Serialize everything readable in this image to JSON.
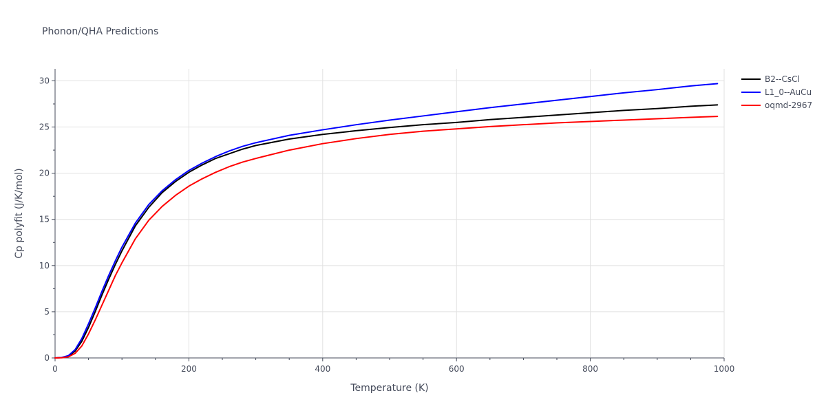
{
  "chart_data": {
    "type": "line",
    "title": "Phonon/QHA Predictions",
    "xlabel": "Temperature (K)",
    "ylabel": "Cp polyfit (J/K/mol)",
    "xlim": [
      0,
      1000
    ],
    "ylim": [
      0,
      31.3
    ],
    "x_ticks": [
      0,
      200,
      400,
      600,
      800,
      1000
    ],
    "y_ticks": [
      0,
      5,
      10,
      15,
      20,
      25,
      30
    ],
    "grid": true,
    "legend_position": "top-right",
    "x": [
      0,
      10,
      20,
      30,
      40,
      50,
      60,
      70,
      80,
      90,
      100,
      120,
      140,
      160,
      180,
      200,
      220,
      240,
      260,
      280,
      300,
      350,
      400,
      450,
      500,
      550,
      600,
      650,
      700,
      750,
      800,
      850,
      900,
      950,
      990
    ],
    "series": [
      {
        "name": "B2--CsCl",
        "color": "#000000",
        "values": [
          0,
          0.05,
          0.2,
          0.75,
          1.8,
          3.3,
          5.0,
          6.8,
          8.5,
          10.1,
          11.6,
          14.3,
          16.3,
          17.9,
          19.1,
          20.1,
          20.9,
          21.6,
          22.1,
          22.6,
          23.0,
          23.7,
          24.2,
          24.6,
          24.95,
          25.25,
          25.5,
          25.8,
          26.05,
          26.3,
          26.55,
          26.8,
          27.0,
          27.25,
          27.4
        ]
      },
      {
        "name": "L1_0--AuCu",
        "color": "#0000ff",
        "values": [
          0,
          0.05,
          0.25,
          0.9,
          2.1,
          3.7,
          5.4,
          7.2,
          8.9,
          10.5,
          12.0,
          14.6,
          16.6,
          18.1,
          19.3,
          20.3,
          21.1,
          21.8,
          22.4,
          22.9,
          23.3,
          24.1,
          24.7,
          25.25,
          25.75,
          26.2,
          26.65,
          27.1,
          27.5,
          27.9,
          28.3,
          28.7,
          29.05,
          29.45,
          29.7
        ]
      },
      {
        "name": "oqmd-2967",
        "color": "#ff0000",
        "values": [
          0,
          0.02,
          0.12,
          0.5,
          1.3,
          2.6,
          4.1,
          5.7,
          7.3,
          8.9,
          10.3,
          12.9,
          14.9,
          16.4,
          17.6,
          18.6,
          19.4,
          20.1,
          20.7,
          21.2,
          21.6,
          22.5,
          23.2,
          23.75,
          24.2,
          24.55,
          24.8,
          25.05,
          25.25,
          25.45,
          25.6,
          25.75,
          25.9,
          26.05,
          26.15
        ]
      }
    ]
  }
}
